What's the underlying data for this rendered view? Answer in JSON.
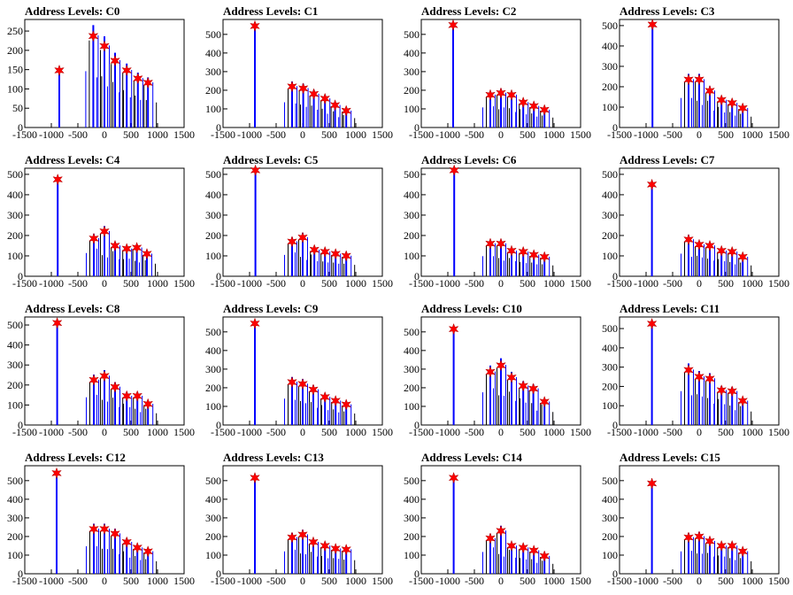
{
  "chart_data": [
    {
      "type": "bar",
      "title": "Address Levels: C0",
      "xlim": [
        -1500,
        1500
      ],
      "xticks": [
        -1500,
        -1000,
        -500,
        0,
        500,
        1000,
        1500
      ],
      "ylim": [
        0,
        280
      ],
      "yticks": [
        0,
        50,
        100,
        150,
        200,
        250
      ],
      "markers": {
        "x": [
          -850,
          -210,
          0,
          200,
          420,
          630,
          820
        ],
        "y": [
          148,
          237,
          211,
          173,
          148,
          127,
          116
        ]
      }
    },
    {
      "type": "bar",
      "title": "Address Levels: C1",
      "xlim": [
        -1500,
        1500
      ],
      "xticks": [
        -1500,
        -1000,
        -500,
        0,
        500,
        1000,
        1500
      ],
      "ylim": [
        0,
        580
      ],
      "yticks": [
        0,
        100,
        200,
        300,
        400,
        500
      ],
      "markers": {
        "x": [
          -900,
          -200,
          10,
          210,
          420,
          610,
          820
        ],
        "y": [
          545,
          220,
          210,
          180,
          155,
          120,
          90
        ]
      }
    },
    {
      "type": "bar",
      "title": "Address Levels: C2",
      "xlim": [
        -1500,
        1500
      ],
      "xticks": [
        -1500,
        -1000,
        -500,
        0,
        500,
        1000,
        1500
      ],
      "ylim": [
        0,
        580
      ],
      "yticks": [
        0,
        100,
        200,
        300,
        400,
        500
      ],
      "markers": {
        "x": [
          -900,
          -200,
          0,
          200,
          420,
          620,
          820
        ],
        "y": [
          550,
          175,
          185,
          175,
          135,
          115,
          95
        ]
      }
    },
    {
      "type": "bar",
      "title": "Address Levels: C3",
      "xlim": [
        -1500,
        1500
      ],
      "xticks": [
        -1500,
        -1000,
        -500,
        0,
        500,
        1000,
        1500
      ],
      "ylim": [
        0,
        530
      ],
      "yticks": [
        0,
        100,
        200,
        300,
        400,
        500
      ],
      "markers": {
        "x": [
          -880,
          -200,
          0,
          200,
          420,
          620,
          820
        ],
        "y": [
          505,
          235,
          235,
          180,
          135,
          120,
          95
        ]
      }
    },
    {
      "type": "bar",
      "title": "Address Levels: C4",
      "xlim": [
        -1500,
        1500
      ],
      "xticks": [
        -1500,
        -1000,
        -500,
        0,
        500,
        1000,
        1500
      ],
      "ylim": [
        0,
        530
      ],
      "yticks": [
        0,
        100,
        200,
        300,
        400,
        500
      ],
      "markers": {
        "x": [
          -880,
          -200,
          0,
          200,
          420,
          610,
          800
        ],
        "y": [
          475,
          185,
          220,
          150,
          135,
          140,
          110
        ]
      }
    },
    {
      "type": "bar",
      "title": "Address Levels: C5",
      "xlim": [
        -1500,
        1500
      ],
      "xticks": [
        -1500,
        -1000,
        -500,
        0,
        500,
        1000,
        1500
      ],
      "ylim": [
        0,
        530
      ],
      "yticks": [
        0,
        100,
        200,
        300,
        400,
        500
      ],
      "markers": {
        "x": [
          -890,
          -200,
          0,
          220,
          420,
          620,
          820
        ],
        "y": [
          520,
          170,
          190,
          130,
          120,
          110,
          100
        ]
      }
    },
    {
      "type": "bar",
      "title": "Address Levels: C6",
      "xlim": [
        -1500,
        1500
      ],
      "xticks": [
        -1500,
        -1000,
        -500,
        0,
        500,
        1000,
        1500
      ],
      "ylim": [
        0,
        530
      ],
      "yticks": [
        0,
        100,
        200,
        300,
        400,
        500
      ],
      "markers": {
        "x": [
          -880,
          -200,
          0,
          200,
          420,
          620,
          820
        ],
        "y": [
          520,
          160,
          160,
          125,
          120,
          105,
          95
        ]
      }
    },
    {
      "type": "bar",
      "title": "Address Levels: C7",
      "xlim": [
        -1500,
        1500
      ],
      "xticks": [
        -1500,
        -1000,
        -500,
        0,
        500,
        1000,
        1500
      ],
      "ylim": [
        0,
        530
      ],
      "yticks": [
        0,
        100,
        200,
        300,
        400,
        500
      ],
      "markers": {
        "x": [
          -890,
          -200,
          0,
          200,
          420,
          620,
          820
        ],
        "y": [
          450,
          180,
          155,
          150,
          125,
          120,
          95
        ]
      }
    },
    {
      "type": "bar",
      "title": "Address Levels: C8",
      "xlim": [
        -1500,
        1500
      ],
      "xticks": [
        -1500,
        -1000,
        -500,
        0,
        500,
        1000,
        1500
      ],
      "ylim": [
        0,
        540
      ],
      "yticks": [
        0,
        100,
        200,
        300,
        400,
        500
      ],
      "markers": {
        "x": [
          -890,
          -200,
          0,
          200,
          420,
          620,
          820
        ],
        "y": [
          510,
          225,
          245,
          190,
          145,
          145,
          105
        ]
      }
    },
    {
      "type": "bar",
      "title": "Address Levels: C9",
      "xlim": [
        -1500,
        1500
      ],
      "xticks": [
        -1500,
        -1000,
        -500,
        0,
        500,
        1000,
        1500
      ],
      "ylim": [
        0,
        580
      ],
      "yticks": [
        0,
        100,
        200,
        300,
        400,
        500
      ],
      "markers": {
        "x": [
          -900,
          -200,
          0,
          200,
          420,
          620,
          820
        ],
        "y": [
          545,
          230,
          220,
          190,
          150,
          130,
          110
        ]
      }
    },
    {
      "type": "bar",
      "title": "Address Levels: C10",
      "xlim": [
        -1500,
        1500
      ],
      "xticks": [
        -1500,
        -1000,
        -500,
        0,
        500,
        1000,
        1500
      ],
      "ylim": [
        0,
        580
      ],
      "yticks": [
        0,
        100,
        200,
        300,
        400,
        500
      ],
      "markers": {
        "x": [
          -890,
          -200,
          0,
          200,
          420,
          610,
          820
        ],
        "y": [
          515,
          285,
          320,
          255,
          210,
          195,
          125
        ]
      }
    },
    {
      "type": "bar",
      "title": "Address Levels: C11",
      "xlim": [
        -1500,
        1500
      ],
      "xticks": [
        -1500,
        -1000,
        -500,
        0,
        500,
        1000,
        1500
      ],
      "ylim": [
        0,
        560
      ],
      "yticks": [
        0,
        100,
        200,
        300,
        400,
        500
      ],
      "markers": {
        "x": [
          -890,
          -200,
          0,
          200,
          420,
          620,
          820
        ],
        "y": [
          525,
          285,
          250,
          240,
          180,
          175,
          125
        ]
      }
    },
    {
      "type": "bar",
      "title": "Address Levels: C12",
      "xlim": [
        -1500,
        1500
      ],
      "xticks": [
        -1500,
        -1000,
        -500,
        0,
        500,
        1000,
        1500
      ],
      "ylim": [
        0,
        580
      ],
      "yticks": [
        0,
        100,
        200,
        300,
        400,
        500
      ],
      "markers": {
        "x": [
          -900,
          -200,
          0,
          200,
          420,
          620,
          820
        ],
        "y": [
          540,
          240,
          240,
          215,
          170,
          140,
          120
        ]
      }
    },
    {
      "type": "bar",
      "title": "Address Levels: C13",
      "xlim": [
        -1500,
        1500
      ],
      "xticks": [
        -1500,
        -1000,
        -500,
        0,
        500,
        1000,
        1500
      ],
      "ylim": [
        0,
        580
      ],
      "yticks": [
        0,
        100,
        200,
        300,
        400,
        500
      ],
      "markers": {
        "x": [
          -900,
          -200,
          0,
          200,
          420,
          620,
          820
        ],
        "y": [
          515,
          195,
          210,
          170,
          150,
          135,
          130
        ]
      }
    },
    {
      "type": "bar",
      "title": "Address Levels: C14",
      "xlim": [
        -1500,
        1500
      ],
      "xticks": [
        -1500,
        -1000,
        -500,
        0,
        500,
        1000,
        1500
      ],
      "ylim": [
        0,
        580
      ],
      "yticks": [
        0,
        100,
        200,
        300,
        400,
        500
      ],
      "markers": {
        "x": [
          -890,
          -200,
          0,
          200,
          420,
          620,
          820
        ],
        "y": [
          515,
          190,
          230,
          150,
          140,
          125,
          95
        ]
      }
    },
    {
      "type": "bar",
      "title": "Address Levels: C15",
      "xlim": [
        -1500,
        1500
      ],
      "xticks": [
        -1500,
        -1000,
        -500,
        0,
        500,
        1000,
        1500
      ],
      "ylim": [
        0,
        580
      ],
      "yticks": [
        0,
        100,
        200,
        300,
        400,
        500
      ],
      "markers": {
        "x": [
          -890,
          -200,
          0,
          200,
          420,
          620,
          820
        ],
        "y": [
          485,
          195,
          200,
          175,
          150,
          150,
          120
        ]
      }
    }
  ],
  "colors": {
    "bars": "#0000ff",
    "markers": "#ff0000",
    "axes": "#000000"
  }
}
